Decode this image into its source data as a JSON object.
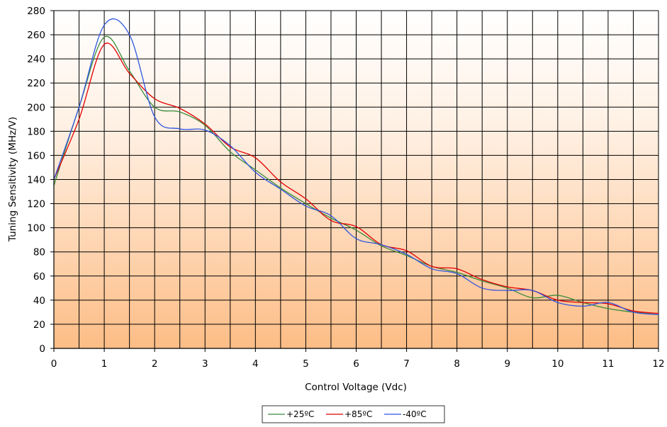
{
  "chart_data": {
    "type": "line",
    "title": "",
    "xlabel": "Control Voltage (Vdc)",
    "ylabel": "Tuning Sensitivity (MHz/V)",
    "xlim": [
      0,
      12
    ],
    "ylim": [
      0,
      280
    ],
    "x_ticks": [
      0,
      1,
      2,
      3,
      4,
      5,
      6,
      7,
      8,
      9,
      10,
      11,
      12
    ],
    "y_ticks": [
      0,
      20,
      40,
      60,
      80,
      100,
      120,
      140,
      160,
      180,
      200,
      220,
      240,
      260,
      280
    ],
    "x_grid_step": 0.5,
    "y_grid_step": 20,
    "grid": true,
    "background": "vertical gradient: white (top) to light orange (bottom)",
    "legend_position": "bottom-center",
    "series": [
      {
        "name": "+25ºC",
        "color": "#3a8a3a",
        "x": [
          0,
          0.5,
          1,
          1.5,
          2,
          2.5,
          3,
          3.5,
          4,
          4.5,
          5,
          5.5,
          6,
          6.5,
          7,
          7.5,
          8,
          8.5,
          9,
          9.5,
          10,
          10.5,
          11,
          11.5,
          12
        ],
        "y": [
          135,
          200,
          258,
          230,
          200,
          196,
          185,
          163,
          148,
          133,
          120,
          108,
          98,
          85,
          77,
          68,
          63,
          56,
          50,
          42,
          44,
          38,
          33,
          30,
          28
        ]
      },
      {
        "name": "+85ºC",
        "color": "#e00000",
        "x": [
          0,
          0.5,
          1,
          1.5,
          2,
          2.5,
          3,
          3.5,
          4,
          4.5,
          5,
          5.5,
          6,
          6.5,
          7,
          7.5,
          8,
          8.5,
          9,
          9.5,
          10,
          10.5,
          11,
          11.5,
          12
        ],
        "y": [
          140,
          190,
          252,
          228,
          207,
          199,
          186,
          167,
          158,
          138,
          124,
          106,
          101,
          86,
          81,
          68,
          66,
          57,
          51,
          48,
          40,
          38,
          37,
          31,
          29
        ]
      },
      {
        "name": "-40ºC",
        "color": "#3055e0",
        "x": [
          0,
          0.5,
          1,
          1.5,
          2,
          2.5,
          3,
          3.5,
          4,
          4.5,
          5,
          5.5,
          6,
          6.5,
          7,
          7.5,
          8,
          8.5,
          9,
          9.5,
          10,
          10.5,
          11,
          11.5,
          12
        ],
        "y": [
          140,
          200,
          268,
          260,
          192,
          182,
          181,
          168,
          146,
          132,
          118,
          110,
          91,
          86,
          78,
          66,
          62,
          50,
          48,
          48,
          38,
          35,
          38,
          30,
          28
        ]
      }
    ]
  }
}
